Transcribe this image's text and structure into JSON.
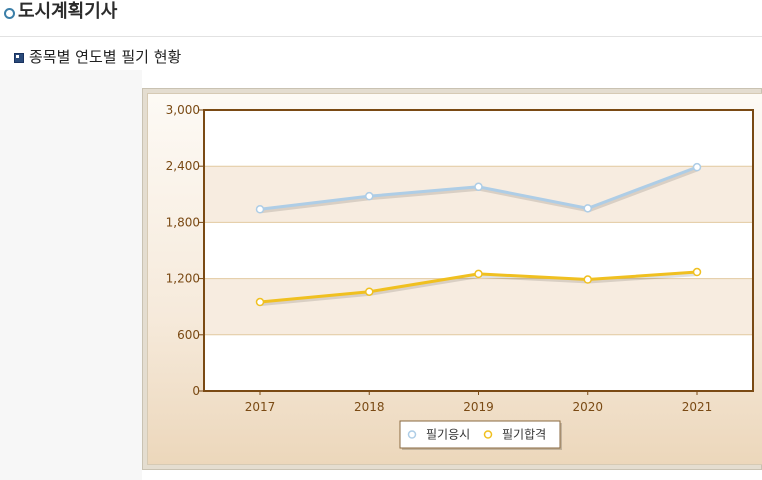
{
  "page_title": "도시계획기사",
  "section_heading": "종목별 연도별 필기 현황",
  "chart_data": {
    "type": "line",
    "title": "",
    "xlabel": "",
    "ylabel": "",
    "categories": [
      "2017",
      "2018",
      "2019",
      "2020",
      "2021"
    ],
    "ylim": [
      0,
      3000
    ],
    "yticks": [
      0,
      600,
      1200,
      1800,
      2400,
      3000
    ],
    "ytick_labels": [
      "0",
      "600",
      "1,200",
      "1,800",
      "2,400",
      "3,000"
    ],
    "grid": true,
    "legend_position": "bottom-center",
    "series": [
      {
        "name": "필기응시",
        "values": [
          1940,
          2080,
          2180,
          1950,
          2390
        ],
        "color": "#aecde6"
      },
      {
        "name": "필기합격",
        "values": [
          950,
          1060,
          1250,
          1190,
          1270
        ],
        "color": "#f0c020"
      }
    ]
  },
  "colors": {
    "plot_border": "#7a4a14",
    "gridline": "#e2c9a0",
    "band": "#f7ece0",
    "axis_text": "#7a4a14"
  }
}
